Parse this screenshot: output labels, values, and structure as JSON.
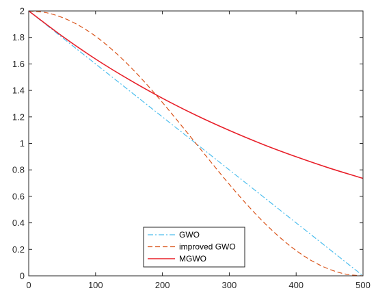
{
  "chart_data": {
    "type": "line",
    "xlim": [
      0,
      500
    ],
    "ylim": [
      0,
      2
    ],
    "x_ticks": [
      0,
      100,
      200,
      300,
      400,
      500
    ],
    "y_ticks": [
      0,
      0.2,
      0.4,
      0.6,
      0.8,
      1,
      1.2,
      1.4,
      1.6,
      1.8,
      2
    ],
    "x_tick_labels": [
      "0",
      "100",
      "200",
      "300",
      "400",
      "500"
    ],
    "y_tick_labels": [
      "0",
      "0.2",
      "0.4",
      "0.6",
      "0.8",
      "1",
      "1.2",
      "1.4",
      "1.6",
      "1.8",
      "2"
    ],
    "grid": false,
    "legend_position": "bottom-center",
    "series": [
      {
        "name": "GWO",
        "color": "#4DBEEE",
        "dash": "dash-dot",
        "x": [
          0,
          100,
          200,
          300,
          400,
          500
        ],
        "y": [
          2,
          1.6,
          1.2,
          0.8,
          0.4,
          0
        ]
      },
      {
        "name": "improved GWO",
        "color": "#D95319",
        "dash": "dashed",
        "x": [
          0,
          25,
          50,
          75,
          100,
          125,
          150,
          175,
          200,
          225,
          250,
          275,
          300,
          325,
          350,
          375,
          400,
          425,
          450,
          475,
          500
        ],
        "y": [
          2.0,
          1.988,
          1.951,
          1.891,
          1.809,
          1.707,
          1.588,
          1.454,
          1.309,
          1.156,
          1.0,
          0.844,
          0.691,
          0.546,
          0.412,
          0.293,
          0.191,
          0.109,
          0.049,
          0.012,
          0.0
        ]
      },
      {
        "name": "MGWO",
        "color": "#E8202A",
        "dash": "solid",
        "x": [
          0,
          50,
          100,
          150,
          200,
          250,
          300,
          350,
          400,
          450,
          500
        ],
        "y": [
          2.0,
          1.81,
          1.637,
          1.482,
          1.341,
          1.213,
          1.098,
          0.993,
          0.899,
          0.813,
          0.736
        ]
      }
    ]
  }
}
